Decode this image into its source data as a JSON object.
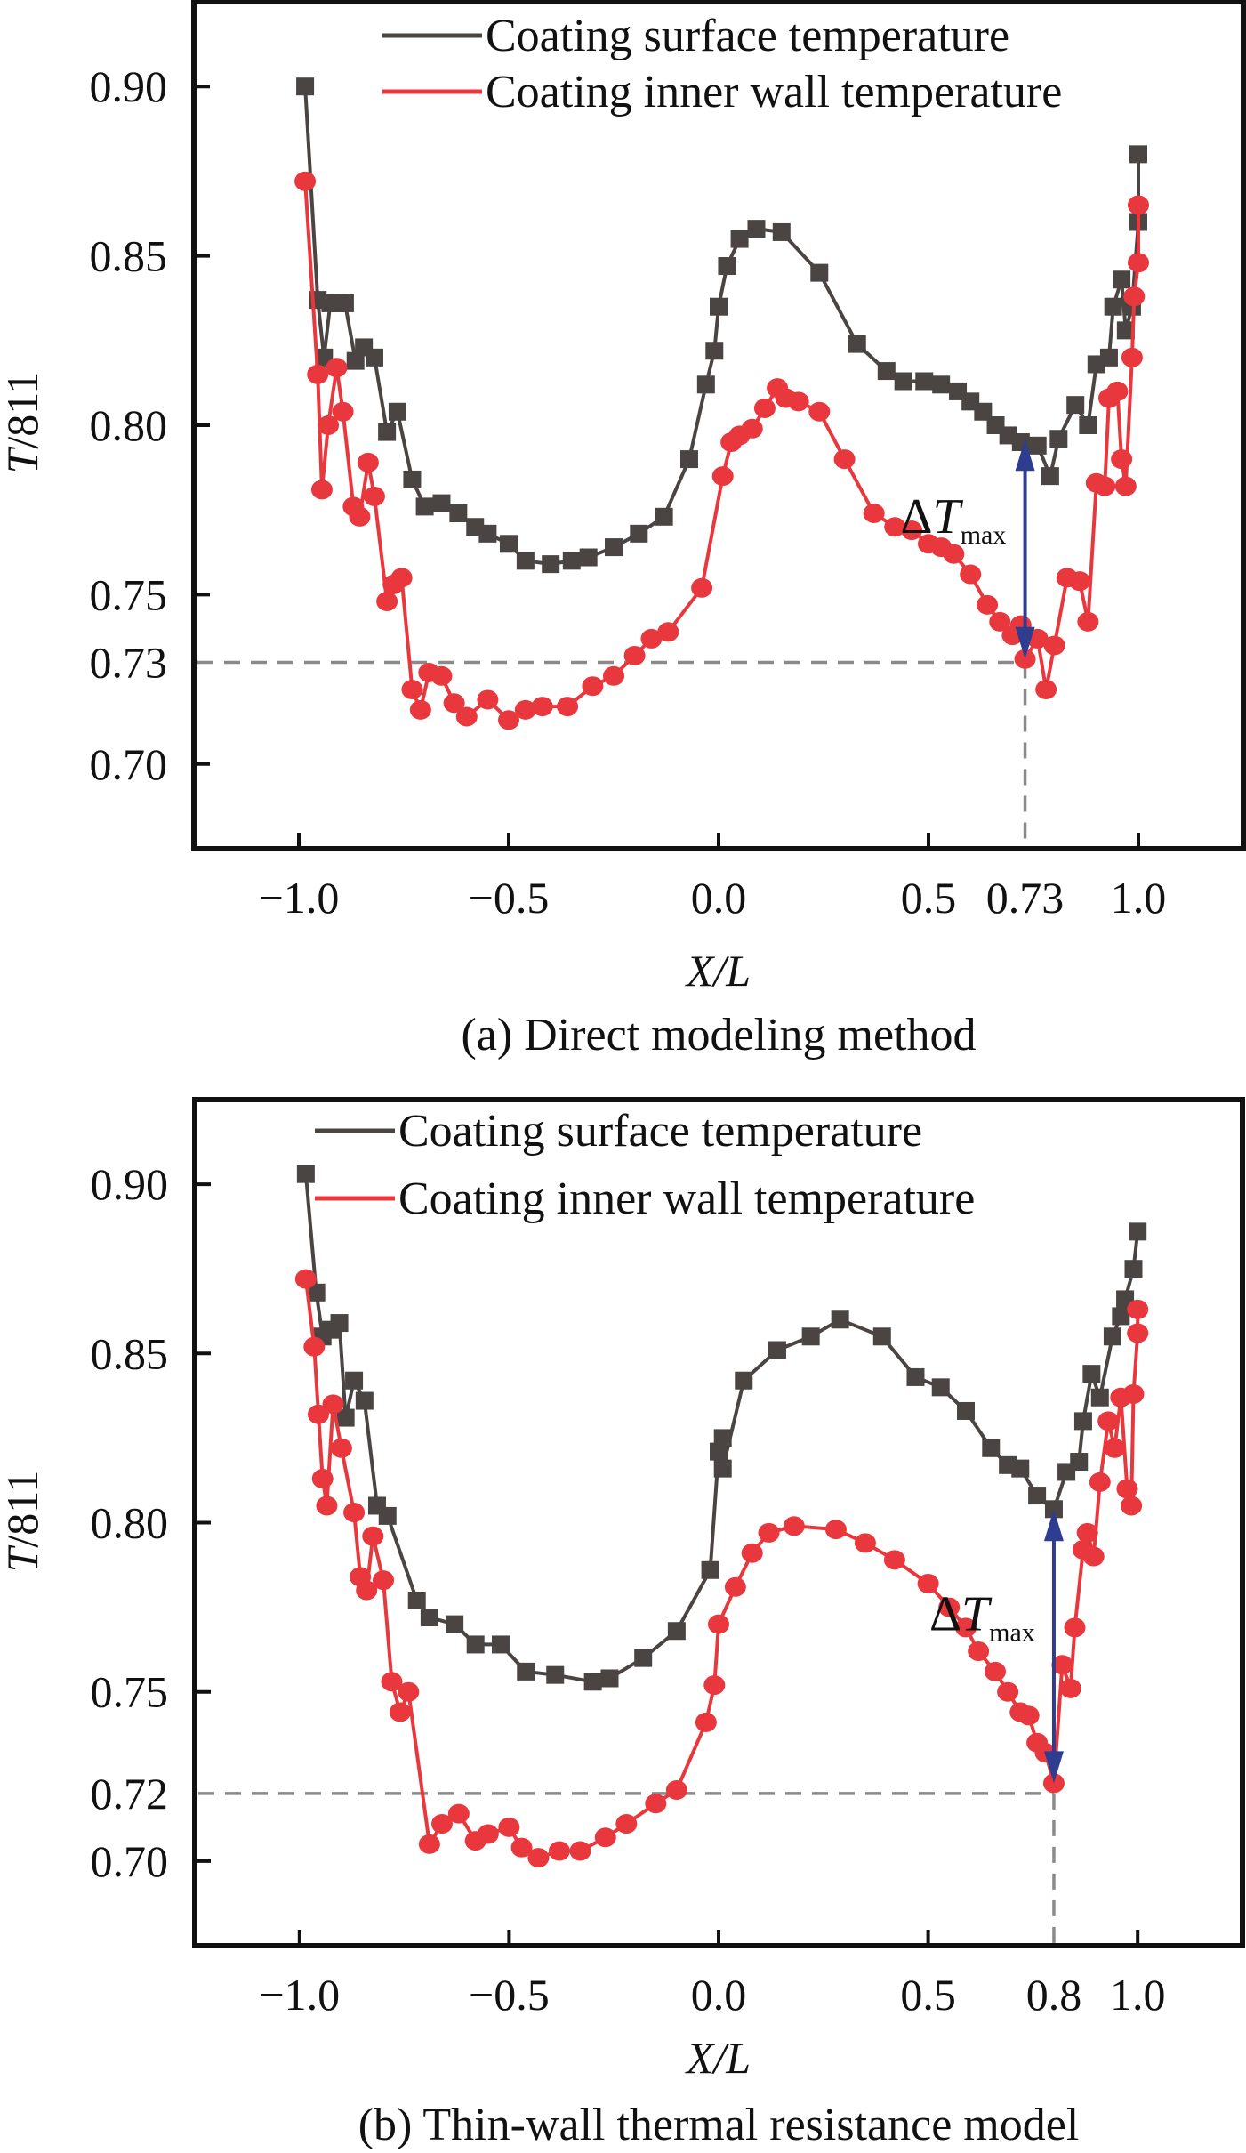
{
  "figure": {
    "colors": {
      "surface": "#4a4542",
      "inner": "#e8383d",
      "arrow": "#2e3d8f",
      "guide": "#8a8a8a",
      "axis": "#111111"
    }
  },
  "chart_data": [
    {
      "id": "a",
      "type": "line",
      "caption": "(a) Direct modeling method",
      "xlabel": "X/L",
      "ylabel": "T/811",
      "xlim": [
        -1.25,
        1.25
      ],
      "ylim": [
        0.675,
        0.925
      ],
      "grid": false,
      "legend_position": "top-right",
      "xticks": [
        -1.0,
        -0.5,
        0.0,
        0.5,
        0.73,
        1.0
      ],
      "xtick_labels": [
        "−1.0",
        "−0.5",
        "0.0",
        "0.5",
        "0.73",
        "1.0"
      ],
      "yticks": [
        0.9,
        0.85,
        0.8,
        0.75,
        0.73,
        0.7
      ],
      "ytick_labels": [
        "0.90",
        "0.85",
        "0.80",
        "0.75",
        "0.73",
        "0.70"
      ],
      "annotation": {
        "label": "ΔT",
        "subscript": "max",
        "x": 0.73,
        "y_from": 0.796,
        "y_to": 0.731
      },
      "guide": {
        "x": 0.73,
        "y": 0.73
      },
      "series": [
        {
          "name": "Coating surface temperature",
          "marker": "square",
          "points": [
            [
              -0.985,
              0.9
            ],
            [
              -0.955,
              0.837
            ],
            [
              -0.94,
              0.82
            ],
            [
              -0.925,
              0.836
            ],
            [
              -0.905,
              0.836
            ],
            [
              -0.89,
              0.836
            ],
            [
              -0.865,
              0.819
            ],
            [
              -0.845,
              0.823
            ],
            [
              -0.82,
              0.82
            ],
            [
              -0.79,
              0.798
            ],
            [
              -0.765,
              0.804
            ],
            [
              -0.73,
              0.784
            ],
            [
              -0.7,
              0.776
            ],
            [
              -0.66,
              0.777
            ],
            [
              -0.62,
              0.774
            ],
            [
              -0.58,
              0.77
            ],
            [
              -0.55,
              0.768
            ],
            [
              -0.5,
              0.765
            ],
            [
              -0.46,
              0.76
            ],
            [
              -0.4,
              0.759
            ],
            [
              -0.35,
              0.76
            ],
            [
              -0.31,
              0.761
            ],
            [
              -0.25,
              0.764
            ],
            [
              -0.19,
              0.768
            ],
            [
              -0.13,
              0.773
            ],
            [
              -0.07,
              0.79
            ],
            [
              -0.03,
              0.812
            ],
            [
              -0.01,
              0.822
            ],
            [
              0.0,
              0.835
            ],
            [
              0.02,
              0.847
            ],
            [
              0.05,
              0.855
            ],
            [
              0.09,
              0.858
            ],
            [
              0.15,
              0.857
            ],
            [
              0.24,
              0.845
            ],
            [
              0.33,
              0.824
            ],
            [
              0.4,
              0.816
            ],
            [
              0.44,
              0.813
            ],
            [
              0.49,
              0.813
            ],
            [
              0.53,
              0.812
            ],
            [
              0.57,
              0.81
            ],
            [
              0.6,
              0.807
            ],
            [
              0.63,
              0.804
            ],
            [
              0.66,
              0.8
            ],
            [
              0.69,
              0.797
            ],
            [
              0.72,
              0.795
            ],
            [
              0.76,
              0.794
            ],
            [
              0.79,
              0.785
            ],
            [
              0.81,
              0.796
            ],
            [
              0.85,
              0.806
            ],
            [
              0.88,
              0.8
            ],
            [
              0.9,
              0.818
            ],
            [
              0.93,
              0.82
            ],
            [
              0.94,
              0.835
            ],
            [
              0.96,
              0.843
            ],
            [
              0.97,
              0.828
            ],
            [
              0.985,
              0.835
            ],
            [
              1.0,
              0.86
            ],
            [
              1.0,
              0.88
            ]
          ]
        },
        {
          "name": "Coating inner wall temperature",
          "marker": "circle",
          "points": [
            [
              -0.985,
              0.872
            ],
            [
              -0.955,
              0.815
            ],
            [
              -0.945,
              0.781
            ],
            [
              -0.93,
              0.8
            ],
            [
              -0.91,
              0.817
            ],
            [
              -0.895,
              0.804
            ],
            [
              -0.87,
              0.776
            ],
            [
              -0.855,
              0.773
            ],
            [
              -0.835,
              0.789
            ],
            [
              -0.82,
              0.779
            ],
            [
              -0.79,
              0.748
            ],
            [
              -0.775,
              0.753
            ],
            [
              -0.755,
              0.755
            ],
            [
              -0.73,
              0.722
            ],
            [
              -0.71,
              0.716
            ],
            [
              -0.69,
              0.727
            ],
            [
              -0.66,
              0.726
            ],
            [
              -0.63,
              0.718
            ],
            [
              -0.6,
              0.714
            ],
            [
              -0.55,
              0.719
            ],
            [
              -0.5,
              0.713
            ],
            [
              -0.46,
              0.716
            ],
            [
              -0.42,
              0.717
            ],
            [
              -0.36,
              0.717
            ],
            [
              -0.3,
              0.723
            ],
            [
              -0.25,
              0.726
            ],
            [
              -0.2,
              0.732
            ],
            [
              -0.16,
              0.737
            ],
            [
              -0.12,
              0.739
            ],
            [
              -0.04,
              0.752
            ],
            [
              0.01,
              0.785
            ],
            [
              0.03,
              0.795
            ],
            [
              0.05,
              0.797
            ],
            [
              0.08,
              0.799
            ],
            [
              0.11,
              0.805
            ],
            [
              0.14,
              0.811
            ],
            [
              0.16,
              0.808
            ],
            [
              0.19,
              0.807
            ],
            [
              0.24,
              0.804
            ],
            [
              0.3,
              0.79
            ],
            [
              0.37,
              0.774
            ],
            [
              0.42,
              0.77
            ],
            [
              0.46,
              0.769
            ],
            [
              0.5,
              0.765
            ],
            [
              0.53,
              0.764
            ],
            [
              0.56,
              0.762
            ],
            [
              0.6,
              0.756
            ],
            [
              0.64,
              0.747
            ],
            [
              0.67,
              0.742
            ],
            [
              0.7,
              0.738
            ],
            [
              0.72,
              0.741
            ],
            [
              0.73,
              0.731
            ],
            [
              0.76,
              0.737
            ],
            [
              0.78,
              0.722
            ],
            [
              0.8,
              0.735
            ],
            [
              0.83,
              0.755
            ],
            [
              0.86,
              0.754
            ],
            [
              0.88,
              0.742
            ],
            [
              0.9,
              0.783
            ],
            [
              0.92,
              0.782
            ],
            [
              0.93,
              0.808
            ],
            [
              0.95,
              0.81
            ],
            [
              0.96,
              0.79
            ],
            [
              0.97,
              0.782
            ],
            [
              0.985,
              0.82
            ],
            [
              0.99,
              0.838
            ],
            [
              1.0,
              0.848
            ],
            [
              1.0,
              0.865
            ]
          ]
        }
      ]
    },
    {
      "id": "b",
      "type": "line",
      "caption": "(b) Thin-wall thermal resistance model",
      "xlabel": "X/L",
      "ylabel": "T/811",
      "xlim": [
        -1.25,
        1.25
      ],
      "ylim": [
        0.675,
        0.925
      ],
      "grid": false,
      "legend_position": "top",
      "xticks": [
        -1.0,
        -0.5,
        0.0,
        0.5,
        0.8,
        1.0
      ],
      "xtick_labels": [
        "−1.0",
        "−0.5",
        "0.0",
        "0.5",
        "0.8",
        "1.0"
      ],
      "yticks": [
        0.9,
        0.85,
        0.8,
        0.75,
        0.72,
        0.7
      ],
      "ytick_labels": [
        "0.90",
        "0.85",
        "0.80",
        "0.75",
        "0.72",
        "0.70"
      ],
      "annotation": {
        "label": "ΔT",
        "subscript": "max",
        "x": 0.8,
        "y_from": 0.804,
        "y_to": 0.723
      },
      "guide": {
        "x": 0.8,
        "y": 0.72
      },
      "series": [
        {
          "name": "Coating surface temperature",
          "marker": "square",
          "points": [
            [
              -0.985,
              0.903
            ],
            [
              -0.96,
              0.868
            ],
            [
              -0.945,
              0.855
            ],
            [
              -0.925,
              0.857
            ],
            [
              -0.905,
              0.859
            ],
            [
              -0.89,
              0.831
            ],
            [
              -0.87,
              0.842
            ],
            [
              -0.845,
              0.836
            ],
            [
              -0.815,
              0.805
            ],
            [
              -0.79,
              0.802
            ],
            [
              -0.72,
              0.777
            ],
            [
              -0.69,
              0.772
            ],
            [
              -0.63,
              0.77
            ],
            [
              -0.58,
              0.764
            ],
            [
              -0.52,
              0.764
            ],
            [
              -0.46,
              0.756
            ],
            [
              -0.39,
              0.755
            ],
            [
              -0.3,
              0.753
            ],
            [
              -0.26,
              0.754
            ],
            [
              -0.18,
              0.76
            ],
            [
              -0.1,
              0.768
            ],
            [
              -0.02,
              0.786
            ],
            [
              0.0,
              0.821
            ],
            [
              0.01,
              0.825
            ],
            [
              0.01,
              0.816
            ],
            [
              0.06,
              0.842
            ],
            [
              0.14,
              0.851
            ],
            [
              0.22,
              0.855
            ],
            [
              0.29,
              0.86
            ],
            [
              0.39,
              0.855
            ],
            [
              0.47,
              0.843
            ],
            [
              0.53,
              0.84
            ],
            [
              0.59,
              0.833
            ],
            [
              0.65,
              0.822
            ],
            [
              0.69,
              0.817
            ],
            [
              0.72,
              0.816
            ],
            [
              0.76,
              0.808
            ],
            [
              0.8,
              0.804
            ],
            [
              0.83,
              0.815
            ],
            [
              0.86,
              0.818
            ],
            [
              0.87,
              0.83
            ],
            [
              0.89,
              0.844
            ],
            [
              0.91,
              0.837
            ],
            [
              0.94,
              0.855
            ],
            [
              0.96,
              0.861
            ],
            [
              0.97,
              0.866
            ],
            [
              0.99,
              0.875
            ],
            [
              1.0,
              0.886
            ]
          ]
        },
        {
          "name": "Coating inner wall temperature",
          "marker": "circle",
          "points": [
            [
              -0.985,
              0.872
            ],
            [
              -0.965,
              0.852
            ],
            [
              -0.955,
              0.832
            ],
            [
              -0.945,
              0.813
            ],
            [
              -0.935,
              0.805
            ],
            [
              -0.92,
              0.835
            ],
            [
              -0.9,
              0.822
            ],
            [
              -0.87,
              0.803
            ],
            [
              -0.855,
              0.784
            ],
            [
              -0.84,
              0.78
            ],
            [
              -0.825,
              0.796
            ],
            [
              -0.8,
              0.783
            ],
            [
              -0.78,
              0.753
            ],
            [
              -0.76,
              0.744
            ],
            [
              -0.74,
              0.75
            ],
            [
              -0.69,
              0.705
            ],
            [
              -0.66,
              0.711
            ],
            [
              -0.62,
              0.714
            ],
            [
              -0.58,
              0.706
            ],
            [
              -0.55,
              0.708
            ],
            [
              -0.5,
              0.71
            ],
            [
              -0.47,
              0.704
            ],
            [
              -0.43,
              0.701
            ],
            [
              -0.38,
              0.703
            ],
            [
              -0.33,
              0.703
            ],
            [
              -0.27,
              0.707
            ],
            [
              -0.22,
              0.711
            ],
            [
              -0.15,
              0.717
            ],
            [
              -0.1,
              0.721
            ],
            [
              -0.03,
              0.741
            ],
            [
              -0.01,
              0.752
            ],
            [
              0.0,
              0.77
            ],
            [
              0.04,
              0.781
            ],
            [
              0.08,
              0.791
            ],
            [
              0.12,
              0.797
            ],
            [
              0.18,
              0.799
            ],
            [
              0.28,
              0.798
            ],
            [
              0.35,
              0.794
            ],
            [
              0.42,
              0.789
            ],
            [
              0.5,
              0.782
            ],
            [
              0.55,
              0.775
            ],
            [
              0.59,
              0.769
            ],
            [
              0.62,
              0.762
            ],
            [
              0.66,
              0.756
            ],
            [
              0.69,
              0.75
            ],
            [
              0.72,
              0.744
            ],
            [
              0.74,
              0.743
            ],
            [
              0.76,
              0.735
            ],
            [
              0.78,
              0.732
            ],
            [
              0.8,
              0.723
            ],
            [
              0.82,
              0.758
            ],
            [
              0.84,
              0.751
            ],
            [
              0.85,
              0.769
            ],
            [
              0.87,
              0.792
            ],
            [
              0.88,
              0.797
            ],
            [
              0.895,
              0.79
            ],
            [
              0.91,
              0.812
            ],
            [
              0.93,
              0.83
            ],
            [
              0.945,
              0.822
            ],
            [
              0.96,
              0.837
            ],
            [
              0.975,
              0.81
            ],
            [
              0.985,
              0.805
            ],
            [
              0.99,
              0.838
            ],
            [
              1.0,
              0.856
            ],
            [
              1.0,
              0.863
            ]
          ]
        }
      ]
    }
  ]
}
